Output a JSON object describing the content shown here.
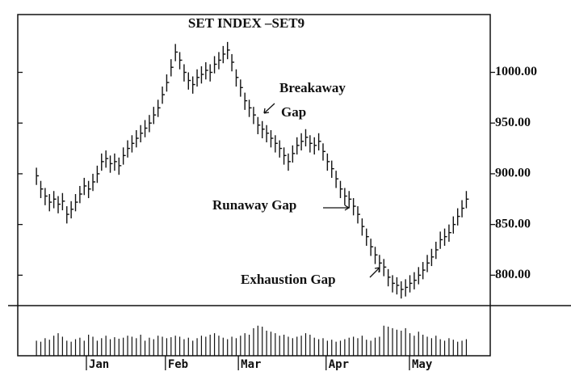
{
  "chart_data": {
    "type": "ohlc",
    "title": "SET INDEX –SET9",
    "annotations": [
      "Breakaway",
      "Gap",
      "Runaway Gap",
      "Exhaustion Gap"
    ],
    "ylim": [
      770,
      1057
    ],
    "yticks": [
      {
        "value": 800,
        "label": "800.00"
      },
      {
        "value": 850,
        "label": "850.00"
      },
      {
        "value": 900,
        "label": "900.00"
      },
      {
        "value": 950,
        "label": "950.00"
      },
      {
        "value": 1000,
        "label": "1000.00"
      }
    ],
    "xlim": [
      -4.3,
      104.5
    ],
    "xticks": [
      {
        "value": 11.5,
        "label": "Jan"
      },
      {
        "value": 29.7,
        "label": "Feb"
      },
      {
        "value": 46.5,
        "label": "Mar"
      },
      {
        "value": 66.7,
        "label": "Apr"
      },
      {
        "value": 85.9,
        "label": "May"
      }
    ],
    "color": "#111111",
    "close": [
      898,
      885,
      878,
      872,
      875,
      870,
      873,
      860,
      865,
      872,
      880,
      888,
      885,
      892,
      900,
      912,
      915,
      910,
      912,
      908,
      918,
      925,
      930,
      935,
      940,
      945,
      950,
      958,
      965,
      978,
      990,
      1005,
      1020,
      1012,
      1000,
      992,
      988,
      995,
      998,
      1002,
      1000,
      1008,
      1012,
      1018,
      1022,
      1010,
      995,
      985,
      972,
      965,
      958,
      948,
      944,
      940,
      935,
      930,
      925,
      918,
      912,
      920,
      928,
      932,
      936,
      930,
      928,
      932,
      922,
      912,
      905,
      895,
      885,
      878,
      875,
      868,
      860,
      848,
      838,
      828,
      820,
      812,
      808,
      798,
      792,
      790,
      786,
      788,
      792,
      795,
      800,
      805,
      812,
      818,
      825,
      835,
      838,
      842,
      850,
      858,
      866,
      875
    ],
    "high": [
      906,
      893,
      886,
      880,
      883,
      878,
      881,
      868,
      873,
      880,
      888,
      896,
      893,
      900,
      908,
      920,
      923,
      918,
      920,
      916,
      926,
      933,
      938,
      943,
      948,
      953,
      958,
      966,
      973,
      986,
      998,
      1013,
      1028,
      1020,
      1008,
      1000,
      996,
      1003,
      1006,
      1010,
      1008,
      1016,
      1020,
      1026,
      1030,
      1018,
      1003,
      993,
      980,
      973,
      966,
      956,
      952,
      948,
      943,
      938,
      933,
      926,
      920,
      928,
      936,
      940,
      944,
      938,
      936,
      940,
      930,
      920,
      913,
      903,
      893,
      886,
      883,
      876,
      868,
      856,
      846,
      836,
      828,
      820,
      816,
      806,
      800,
      798,
      794,
      796,
      800,
      803,
      808,
      813,
      820,
      826,
      833,
      843,
      846,
      850,
      858,
      866,
      874,
      883
    ],
    "low": [
      889,
      876,
      869,
      863,
      866,
      861,
      864,
      851,
      856,
      863,
      871,
      879,
      876,
      883,
      891,
      903,
      906,
      901,
      903,
      899,
      909,
      916,
      921,
      926,
      931,
      936,
      941,
      949,
      956,
      969,
      981,
      996,
      1011,
      1003,
      991,
      983,
      979,
      986,
      989,
      993,
      991,
      999,
      1003,
      1009,
      1013,
      1001,
      986,
      976,
      963,
      956,
      949,
      939,
      935,
      931,
      926,
      921,
      916,
      909,
      903,
      911,
      919,
      923,
      927,
      921,
      919,
      923,
      913,
      903,
      896,
      886,
      876,
      869,
      866,
      859,
      851,
      839,
      829,
      819,
      811,
      803,
      799,
      789,
      783,
      781,
      777,
      779,
      783,
      786,
      791,
      796,
      803,
      809,
      816,
      826,
      829,
      833,
      841,
      849,
      857,
      866
    ],
    "volume": [
      30,
      28,
      35,
      32,
      40,
      45,
      38,
      30,
      28,
      33,
      36,
      30,
      42,
      38,
      30,
      35,
      40,
      33,
      37,
      34,
      36,
      40,
      38,
      35,
      42,
      30,
      36,
      33,
      40,
      38,
      35,
      37,
      40,
      38,
      33,
      36,
      30,
      35,
      40,
      38,
      42,
      45,
      40,
      36,
      33,
      38,
      35,
      40,
      45,
      42,
      55,
      60,
      58,
      50,
      48,
      45,
      40,
      42,
      38,
      35,
      38,
      40,
      45,
      42,
      36,
      33,
      35,
      30,
      32,
      28,
      30,
      33,
      36,
      38,
      35,
      40,
      32,
      30,
      36,
      38,
      60,
      58,
      55,
      52,
      50,
      55,
      45,
      40,
      48,
      42,
      38,
      35,
      40,
      33,
      30,
      35,
      32,
      28,
      30,
      33
    ],
    "vlim": [
      0,
      100
    ]
  }
}
